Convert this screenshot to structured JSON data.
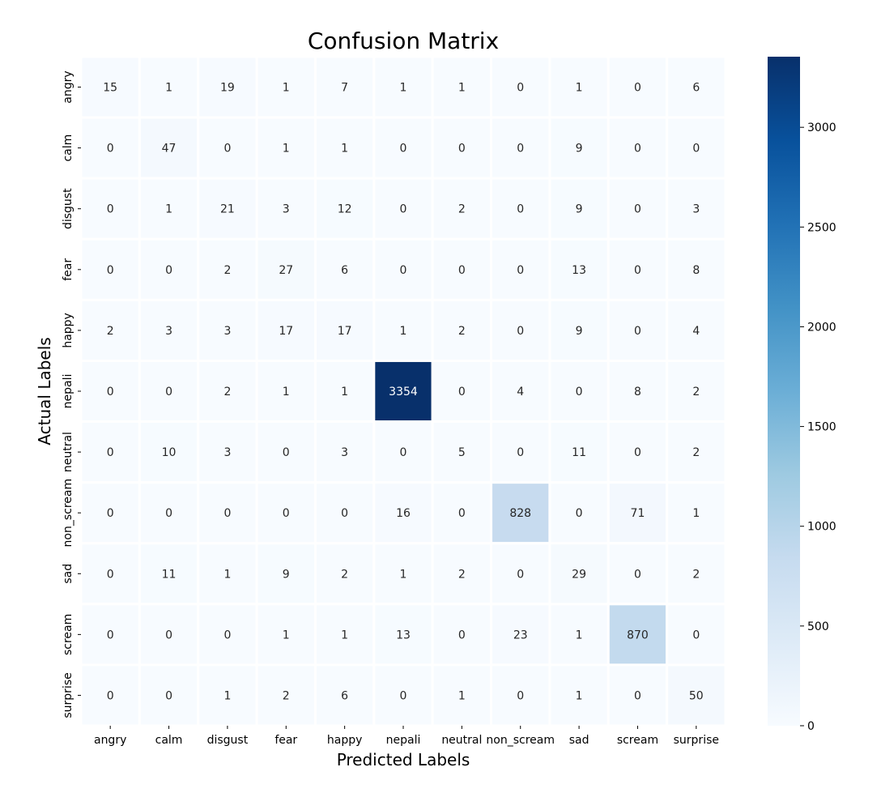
{
  "chart_data": {
    "type": "heatmap",
    "title": "Confusion Matrix",
    "xlabel": "Predicted Labels",
    "ylabel": "Actual Labels",
    "x_categories": [
      "angry",
      "calm",
      "disgust",
      "fear",
      "happy",
      "nepali",
      "neutral",
      "non_scream",
      "sad",
      "scream",
      "surprise"
    ],
    "y_categories": [
      "angry",
      "calm",
      "disgust",
      "fear",
      "happy",
      "nepali",
      "neutral",
      "non_scream",
      "sad",
      "scream",
      "surprise"
    ],
    "values": [
      [
        15,
        1,
        19,
        1,
        7,
        1,
        1,
        0,
        1,
        0,
        6
      ],
      [
        0,
        47,
        0,
        1,
        1,
        0,
        0,
        0,
        9,
        0,
        0
      ],
      [
        0,
        1,
        21,
        3,
        12,
        0,
        2,
        0,
        9,
        0,
        3
      ],
      [
        0,
        0,
        2,
        27,
        6,
        0,
        0,
        0,
        13,
        0,
        8
      ],
      [
        2,
        3,
        3,
        17,
        17,
        1,
        2,
        0,
        9,
        0,
        4
      ],
      [
        0,
        0,
        2,
        1,
        1,
        3354,
        0,
        4,
        0,
        8,
        2
      ],
      [
        0,
        10,
        3,
        0,
        3,
        0,
        5,
        0,
        11,
        0,
        2
      ],
      [
        0,
        0,
        0,
        0,
        0,
        16,
        0,
        828,
        0,
        71,
        1
      ],
      [
        0,
        11,
        1,
        9,
        2,
        1,
        2,
        0,
        29,
        0,
        2
      ],
      [
        0,
        0,
        0,
        1,
        1,
        13,
        0,
        23,
        1,
        870,
        0
      ],
      [
        0,
        0,
        1,
        2,
        6,
        0,
        1,
        0,
        1,
        0,
        50
      ]
    ],
    "colormap": "Blues",
    "colormap_colors": [
      "#f7fbff",
      "#deebf7",
      "#c6dbef",
      "#9ecae1",
      "#6baed6",
      "#4292c6",
      "#2171b5",
      "#08519c",
      "#08306b"
    ],
    "value_range": [
      0,
      3354
    ],
    "colorbar_ticks": [
      0,
      500,
      1000,
      1500,
      2000,
      2500,
      3000
    ],
    "grid": false,
    "legend": "colorbar-right"
  }
}
